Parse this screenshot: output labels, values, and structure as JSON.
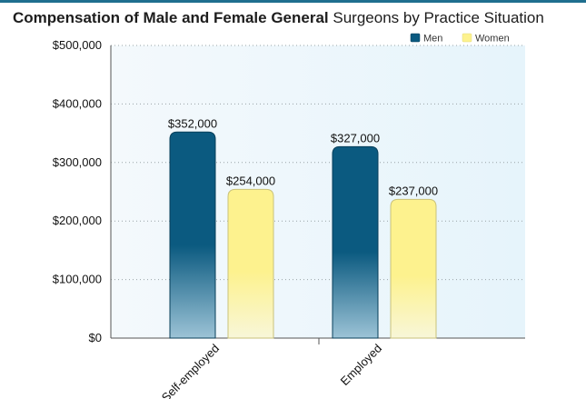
{
  "chart_data": {
    "type": "bar",
    "title_bold": "Compensation of Male and Female General",
    "title_rest": "Surgeons by Practice Situation",
    "categories": [
      "Self-employed",
      "Employed"
    ],
    "series": [
      {
        "name": "Men",
        "values": [
          352000,
          327000
        ],
        "labels": [
          "$352,000",
          "$327,000"
        ],
        "color": "#0b5a80"
      },
      {
        "name": "Women",
        "values": [
          254000,
          237000
        ],
        "labels": [
          "$254,000",
          "$237,000"
        ],
        "color": "#fdf28e"
      }
    ],
    "ylim": [
      0,
      500000
    ],
    "yticks": [
      0,
      100000,
      200000,
      300000,
      400000,
      500000
    ],
    "ytick_labels": [
      "$0",
      "$100,000",
      "$200,000",
      "$300,000",
      "$400,000",
      "$500,000"
    ],
    "grid": "horizontal dotted",
    "legend_position": "top-right",
    "plot_background": "#eef7fc"
  }
}
